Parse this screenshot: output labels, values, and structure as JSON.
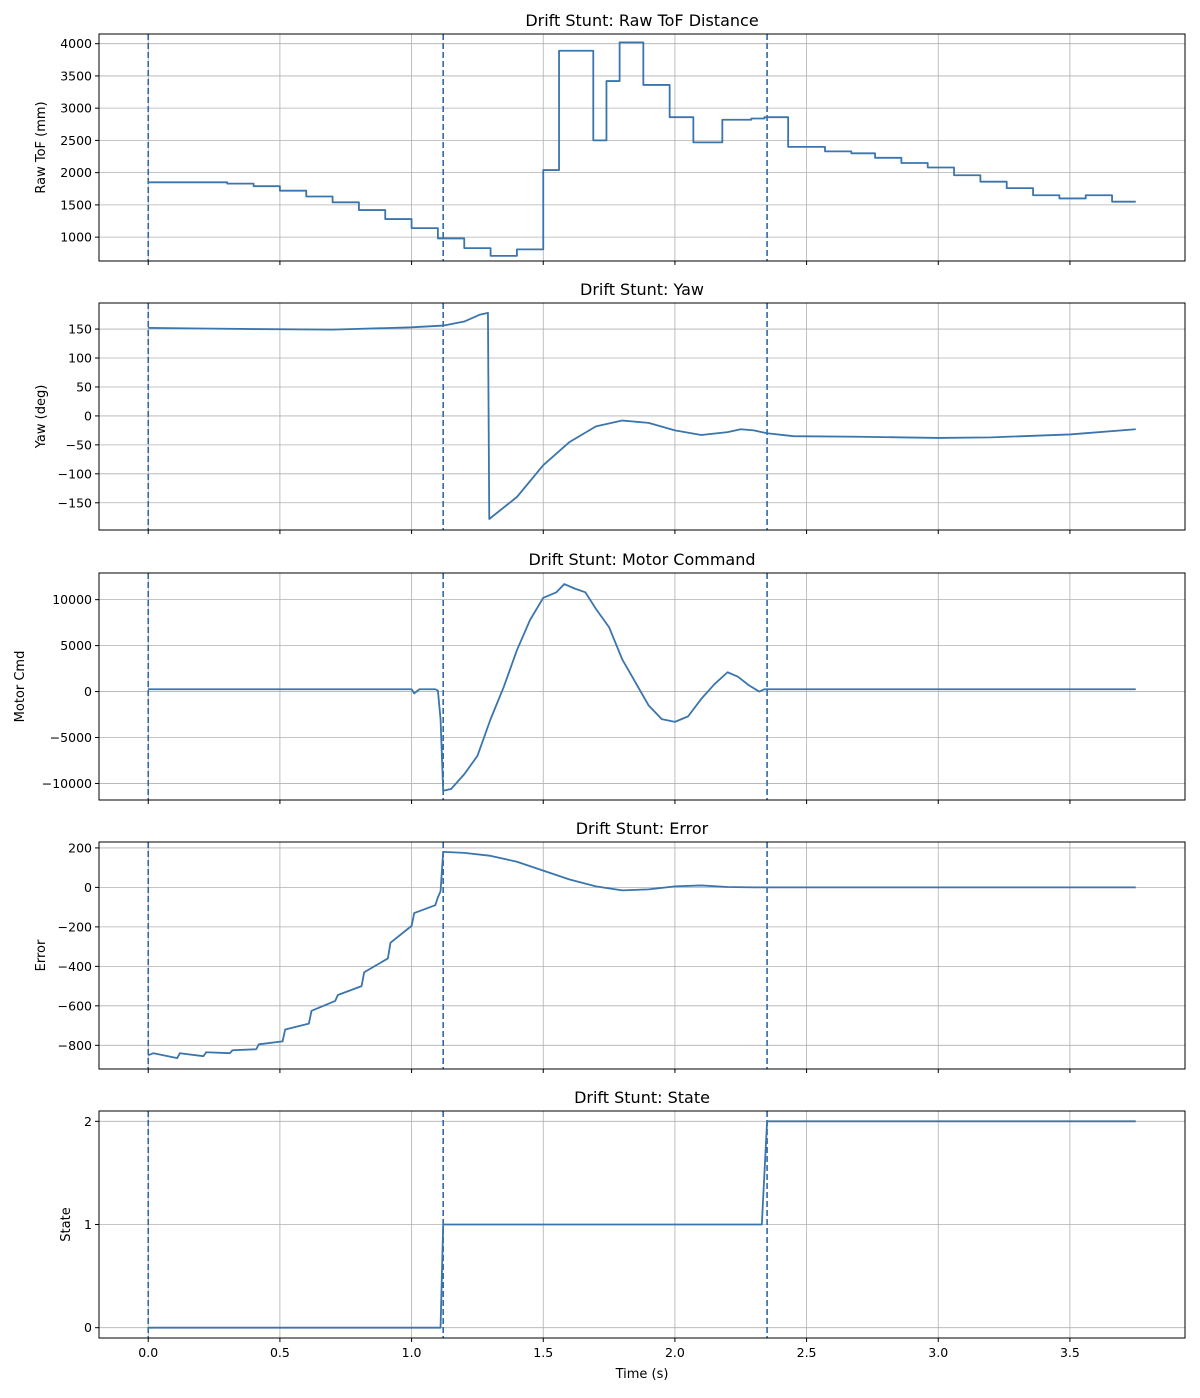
{
  "colors": {
    "line": "#3a75ad",
    "vline": "#2f6aa6",
    "grid": "#b0b0b0",
    "axis": "#000000"
  },
  "xlabel": "Time (s)",
  "xlim": [
    -0.187,
    3.937
  ],
  "xticks": [
    0.0,
    0.5,
    1.0,
    1.5,
    2.0,
    2.5,
    3.0,
    3.5
  ],
  "xtick_labels": [
    "0.0",
    "0.5",
    "1.0",
    "1.5",
    "2.0",
    "2.5",
    "3.0",
    "3.5"
  ],
  "vlines": [
    0.0,
    1.12,
    2.35
  ],
  "chart_data": [
    {
      "type": "line",
      "title": "Drift Stunt: Raw ToF Distance",
      "ylabel": "Raw ToF (mm)",
      "ylim": [
        630,
        4150
      ],
      "yticks": [
        1000,
        1500,
        2000,
        2500,
        3000,
        3500,
        4000
      ],
      "step": true,
      "x": [
        0.0,
        0.3,
        0.4,
        0.5,
        0.6,
        0.7,
        0.8,
        0.9,
        1.0,
        1.1,
        1.2,
        1.3,
        1.4,
        1.5,
        1.56,
        1.69,
        1.74,
        1.79,
        1.88,
        1.98,
        2.07,
        2.18,
        2.29,
        2.34,
        2.43,
        2.57,
        2.67,
        2.76,
        2.86,
        2.96,
        3.06,
        3.16,
        3.26,
        3.36,
        3.46,
        3.56,
        3.66,
        3.75
      ],
      "values": [
        1850,
        1830,
        1790,
        1720,
        1630,
        1540,
        1420,
        1280,
        1140,
        980,
        830,
        710,
        810,
        2040,
        3890,
        2500,
        3420,
        4020,
        3360,
        2860,
        2470,
        2820,
        2840,
        2860,
        2400,
        2330,
        2300,
        2230,
        2150,
        2080,
        1960,
        1860,
        1760,
        1650,
        1600,
        1650,
        1550,
        1550
      ]
    },
    {
      "type": "line",
      "title": "Drift Stunt: Yaw",
      "ylabel": "Yaw (deg)",
      "ylim": [
        -197,
        195
      ],
      "yticks": [
        -150,
        -100,
        -50,
        0,
        50,
        100,
        150
      ],
      "x": [
        0.0,
        0.2,
        0.4,
        0.7,
        1.0,
        1.12,
        1.2,
        1.26,
        1.29,
        1.295,
        1.4,
        1.5,
        1.6,
        1.7,
        1.8,
        1.9,
        2.0,
        2.1,
        2.2,
        2.25,
        2.3,
        2.35,
        2.45,
        2.7,
        3.0,
        3.2,
        3.5,
        3.75
      ],
      "values": [
        152,
        151,
        150,
        149,
        153,
        156,
        163,
        175,
        178,
        -178,
        -140,
        -85,
        -45,
        -18,
        -8,
        -12,
        -25,
        -33,
        -28,
        -23,
        -25,
        -30,
        -35,
        -36,
        -38,
        -37,
        -32,
        -23
      ]
    },
    {
      "type": "line",
      "title": "Drift Stunt: Motor Command",
      "ylabel": "Motor Cmd",
      "ylim": [
        -11800,
        12900
      ],
      "yticks": [
        -10000,
        -5000,
        0,
        5000,
        10000
      ],
      "x": [
        0.0,
        1.0,
        1.01,
        1.03,
        1.09,
        1.1,
        1.11,
        1.12,
        1.15,
        1.2,
        1.25,
        1.3,
        1.35,
        1.4,
        1.45,
        1.5,
        1.55,
        1.58,
        1.62,
        1.66,
        1.7,
        1.75,
        1.8,
        1.85,
        1.9,
        1.95,
        2.0,
        2.05,
        2.1,
        2.15,
        2.2,
        2.24,
        2.28,
        2.32,
        2.34,
        2.35,
        2.5,
        3.0,
        3.75
      ],
      "values": [
        250,
        250,
        -200,
        250,
        250,
        100,
        -3000,
        -10800,
        -10600,
        -9000,
        -7000,
        -3000,
        500,
        4500,
        7800,
        10200,
        10800,
        11700,
        11200,
        10800,
        9000,
        7000,
        3500,
        1000,
        -1500,
        -3000,
        -3300,
        -2700,
        -800,
        800,
        2100,
        1600,
        700,
        0,
        250,
        250,
        250,
        250,
        250
      ]
    },
    {
      "type": "line",
      "title": "Drift Stunt: Error",
      "ylabel": "Error",
      "ylim": [
        -920,
        230
      ],
      "yticks": [
        -800,
        -600,
        -400,
        -200,
        0,
        200
      ],
      "x": [
        0.0,
        0.02,
        0.11,
        0.12,
        0.21,
        0.22,
        0.31,
        0.32,
        0.41,
        0.42,
        0.51,
        0.52,
        0.61,
        0.62,
        0.71,
        0.72,
        0.81,
        0.82,
        0.91,
        0.92,
        1.0,
        1.01,
        1.09,
        1.1,
        1.11,
        1.12,
        1.2,
        1.3,
        1.4,
        1.5,
        1.6,
        1.7,
        1.8,
        1.9,
        2.0,
        2.1,
        2.2,
        2.3,
        2.35,
        3.0,
        3.75
      ],
      "values": [
        -850,
        -840,
        -865,
        -840,
        -855,
        -835,
        -840,
        -825,
        -820,
        -795,
        -780,
        -720,
        -690,
        -625,
        -575,
        -545,
        -500,
        -430,
        -360,
        -280,
        -195,
        -130,
        -90,
        -50,
        -20,
        180,
        175,
        160,
        130,
        85,
        40,
        5,
        -15,
        -10,
        5,
        10,
        2,
        0,
        0,
        0,
        0
      ]
    },
    {
      "type": "line",
      "title": "Drift Stunt: State",
      "ylabel": "State",
      "ylim": [
        -0.1,
        2.1
      ],
      "yticks": [
        0,
        1,
        2
      ],
      "x": [
        0.0,
        1.11,
        1.12,
        2.33,
        2.35,
        3.75
      ],
      "values": [
        0,
        0,
        1,
        1,
        2,
        2
      ]
    }
  ]
}
